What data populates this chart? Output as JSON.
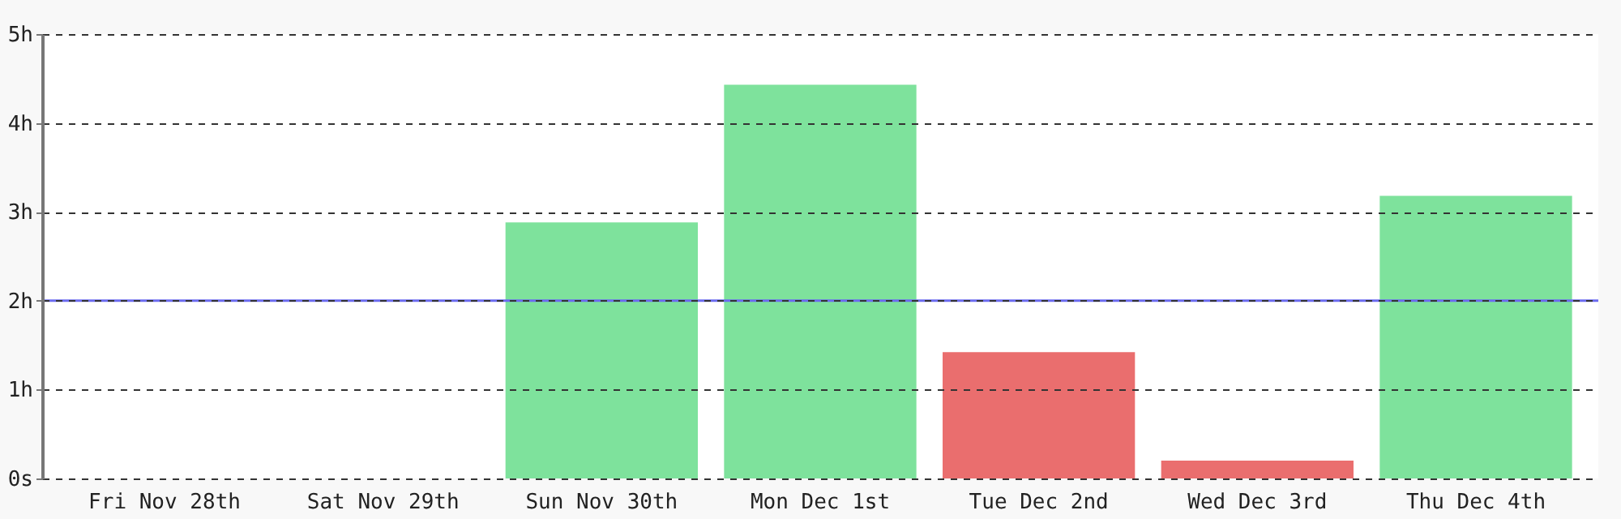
{
  "chart_data": {
    "type": "bar",
    "categories": [
      "Fri Nov 28th",
      "Sat Nov 29th",
      "Sun Nov 30th",
      "Mon Dec 1st",
      "Tue Dec 2nd",
      "Wed Dec 3rd",
      "Thu Dec 4th"
    ],
    "values": [
      0,
      0,
      2.88,
      4.43,
      1.42,
      0.2,
      3.18
    ],
    "colors": [
      "#ea6e6e",
      "#ea6e6e",
      "#7ee29c",
      "#7ee29c",
      "#ea6e6e",
      "#ea6e6e",
      "#7ee29c"
    ],
    "ylim": [
      0,
      5
    ],
    "yticks": [
      {
        "value": 0,
        "label": "0s"
      },
      {
        "value": 1,
        "label": "1h"
      },
      {
        "value": 2,
        "label": "2h"
      },
      {
        "value": 3,
        "label": "3h"
      },
      {
        "value": 4,
        "label": "4h"
      },
      {
        "value": 5,
        "label": "5h"
      }
    ],
    "grid": "y",
    "ref_lines": [
      {
        "axis": "y",
        "value": 2,
        "color": "#6b6bf0"
      }
    ]
  }
}
